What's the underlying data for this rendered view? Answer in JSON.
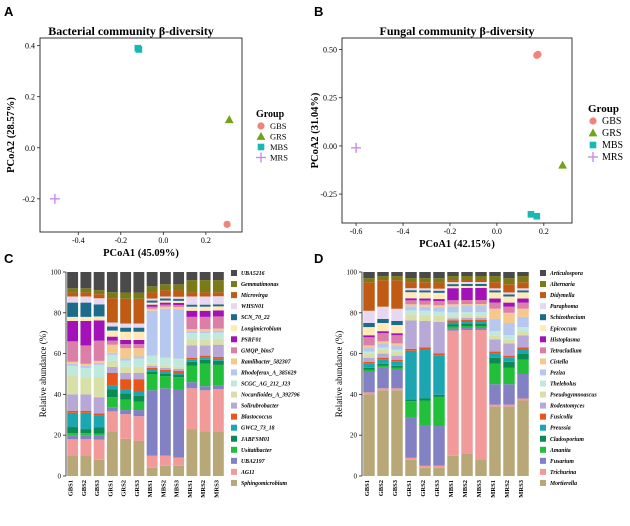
{
  "figure": {
    "panels": [
      {
        "letter": "A"
      },
      {
        "letter": "B"
      },
      {
        "letter": "C"
      },
      {
        "letter": "D"
      }
    ]
  },
  "chart_data": [
    {
      "panel": "A",
      "type": "scatter",
      "title": "Bacterial community β-diversity",
      "xlabel": "PCoA1 (45.09%)",
      "ylabel": "PCoA2 (28.57%)",
      "xlim": [
        -0.58,
        0.37
      ],
      "ylim": [
        -0.33,
        0.43
      ],
      "xticks": [
        -0.4,
        -0.2,
        0.0,
        0.2
      ],
      "yticks": [
        -0.2,
        0.0,
        0.2,
        0.4
      ],
      "grid": false,
      "legend_title": "Group",
      "legend_position": "right",
      "series": [
        {
          "name": "GBS",
          "marker": "circle",
          "color": "#f0847b",
          "points": [
            [
              0.3,
              -0.3
            ]
          ]
        },
        {
          "name": "GRS",
          "marker": "triangle",
          "color": "#72a31a",
          "points": [
            [
              0.31,
              0.11
            ]
          ]
        },
        {
          "name": "MBS",
          "marker": "square",
          "color": "#17b9b4",
          "points": [
            [
              -0.12,
              0.39
            ],
            [
              -0.115,
              0.385
            ]
          ]
        },
        {
          "name": "MRS",
          "marker": "cross",
          "color": "#c78bf0",
          "points": [
            [
              -0.51,
              -0.2
            ]
          ]
        }
      ]
    },
    {
      "panel": "B",
      "type": "scatter",
      "title": "Fungal community β-diversity",
      "xlabel": "PCoA1 (42.15%)",
      "ylabel": "PCoA2 (31.04%)",
      "xlim": [
        -0.66,
        0.32
      ],
      "ylim": [
        -0.4,
        0.56
      ],
      "xticks": [
        -0.6,
        -0.4,
        -0.2,
        0.0,
        0.2
      ],
      "yticks": [
        -0.25,
        0.0,
        0.25,
        0.5
      ],
      "grid": false,
      "legend_title": "Group",
      "legend_position": "right",
      "series": [
        {
          "name": "GBS",
          "marker": "circle",
          "color": "#f0847b",
          "points": [
            [
              0.17,
              0.47
            ],
            [
              0.175,
              0.475
            ]
          ]
        },
        {
          "name": "GRS",
          "marker": "triangle",
          "color": "#72a31a",
          "points": [
            [
              0.28,
              -0.1
            ]
          ]
        },
        {
          "name": "MBS",
          "marker": "square",
          "color": "#17b9b4",
          "points": [
            [
              0.145,
              -0.355
            ],
            [
              0.17,
              -0.365
            ]
          ]
        },
        {
          "name": "MRS",
          "marker": "cross",
          "color": "#c78bf0",
          "points": [
            [
              -0.6,
              -0.01
            ]
          ]
        }
      ]
    },
    {
      "panel": "C",
      "type": "bar",
      "stacked": true,
      "ylabel": "Relative abundance (%)",
      "ylim": [
        0,
        100
      ],
      "yticks": [
        0,
        20,
        40,
        60,
        80,
        100
      ],
      "legend_position": "right",
      "categories": [
        "GBS1",
        "GBS2",
        "GBS3",
        "GRS1",
        "GRS2",
        "GRS3",
        "MBS1",
        "MBS2",
        "MBS3",
        "MRS1",
        "MRS2",
        "MRS3"
      ],
      "series": [
        {
          "name": "Sphingomicrobium",
          "color": "#b8a878",
          "values": [
            10,
            10,
            8,
            22,
            18,
            17,
            4,
            5,
            5,
            23,
            22,
            22
          ]
        },
        {
          "name": "AG11",
          "color": "#f29a9a",
          "values": [
            8,
            8,
            10,
            10,
            12,
            12,
            6,
            5,
            4,
            20,
            20,
            21
          ]
        },
        {
          "name": "UBA2197",
          "color": "#8181c3",
          "values": [
            2,
            2,
            2,
            2,
            2,
            3,
            32,
            33,
            33,
            3,
            2,
            2
          ]
        },
        {
          "name": "Usitatibacter",
          "color": "#22c03a",
          "values": [
            1,
            1,
            1,
            5,
            5,
            4,
            8,
            6,
            6,
            8,
            11,
            10
          ]
        },
        {
          "name": "JABFSM01",
          "color": "#0b8a52",
          "values": [
            3,
            2,
            3,
            4,
            3,
            3,
            1,
            1,
            1,
            2,
            2,
            2
          ]
        },
        {
          "name": "GWC2_73_18",
          "color": "#1ca6b2",
          "values": [
            7,
            8,
            6,
            2,
            2,
            2,
            1,
            1,
            1,
            1,
            1,
            1
          ]
        },
        {
          "name": "Blastococcus",
          "color": "#e9541b",
          "values": [
            1,
            1,
            1,
            6,
            5,
            6,
            1,
            1,
            1,
            1,
            1,
            1
          ]
        },
        {
          "name": "Solirubrobacter",
          "color": "#b8a8d8",
          "values": [
            8,
            8,
            8,
            3,
            3,
            3,
            1,
            1,
            1,
            6,
            5,
            6
          ]
        },
        {
          "name": "Nocardioides_A_392796",
          "color": "#d8e0a8",
          "values": [
            9,
            8,
            10,
            3,
            3,
            3,
            1,
            1,
            1,
            3,
            3,
            3
          ]
        },
        {
          "name": "SCGC_AG_212_J23",
          "color": "#bfe9dc",
          "values": [
            5,
            5,
            6,
            3,
            3,
            4,
            4,
            4,
            4,
            3,
            3,
            3
          ]
        },
        {
          "name": "Rhodoferax_A_385629",
          "color": "#b6c7f0",
          "values": [
            1,
            1,
            1,
            1,
            1,
            1,
            22,
            24,
            24,
            1,
            1,
            1
          ]
        },
        {
          "name": "Ramlibacter_582307",
          "color": "#f5c98c",
          "values": [
            1,
            1,
            1,
            4,
            5,
            4,
            1,
            1,
            1,
            1,
            1,
            1
          ]
        },
        {
          "name": "GMQP_bins7",
          "color": "#dc7fa8",
          "values": [
            10,
            9,
            10,
            2,
            2,
            2,
            1,
            1,
            1,
            6,
            6,
            6
          ]
        },
        {
          "name": "PSRF01",
          "color": "#a312b8",
          "values": [
            10,
            12,
            10,
            2,
            2,
            2,
            1,
            1,
            1,
            3,
            3,
            3
          ]
        },
        {
          "name": "Longimicrobium",
          "color": "#ffe9b5",
          "values": [
            2,
            2,
            2,
            3,
            4,
            4,
            1,
            1,
            1,
            2,
            2,
            2
          ]
        },
        {
          "name": "SCN_70_22",
          "color": "#1b6b8a",
          "values": [
            7,
            7,
            6,
            2,
            2,
            2,
            1,
            1,
            1,
            1,
            1,
            1
          ]
        },
        {
          "name": "WHSN01",
          "color": "#e8d7f0",
          "values": [
            3,
            3,
            3,
            2,
            2,
            2,
            1,
            1,
            1,
            4,
            4,
            4
          ]
        },
        {
          "name": "Microvirga",
          "color": "#c05a15",
          "values": [
            2,
            2,
            2,
            12,
            12,
            12,
            3,
            3,
            3,
            2,
            2,
            2
          ]
        },
        {
          "name": "Gemmatimonas",
          "color": "#7a7a18",
          "values": [
            2,
            2,
            2,
            3,
            3,
            3,
            3,
            3,
            3,
            6,
            6,
            6
          ]
        },
        {
          "name": "UBA5216",
          "color": "#4a4a4a",
          "values": [
            8,
            8,
            9,
            10,
            10,
            10,
            7,
            6,
            6,
            4,
            4,
            4
          ]
        }
      ]
    },
    {
      "panel": "D",
      "type": "bar",
      "stacked": true,
      "ylabel": "Relative abundance (%)",
      "ylim": [
        0,
        100
      ],
      "yticks": [
        0,
        20,
        40,
        60,
        80,
        100
      ],
      "legend_position": "right",
      "categories": [
        "GBS1",
        "GBS2",
        "GBS3",
        "GRS1",
        "GRS2",
        "GRS3",
        "MBS1",
        "MBS2",
        "MBS3",
        "MRS1",
        "MRS2",
        "MRS3"
      ],
      "series": [
        {
          "name": "Mortierella",
          "color": "#b8a878",
          "values": [
            40,
            42,
            42,
            8,
            4,
            4,
            10,
            11,
            8,
            34,
            34,
            37
          ]
        },
        {
          "name": "Trichurina",
          "color": "#f29a9a",
          "values": [
            1,
            1,
            1,
            1,
            1,
            1,
            62,
            62,
            65,
            1,
            1,
            1
          ]
        },
        {
          "name": "Fusarium",
          "color": "#8181c3",
          "values": [
            10,
            10,
            9,
            20,
            20,
            19,
            1,
            1,
            1,
            10,
            10,
            12
          ]
        },
        {
          "name": "Amanita",
          "color": "#22c03a",
          "values": [
            1,
            1,
            1,
            8,
            12,
            14,
            1,
            1,
            1,
            10,
            8,
            7
          ]
        },
        {
          "name": "Cladosporium",
          "color": "#0b8a52",
          "values": [
            1,
            1,
            1,
            1,
            1,
            1,
            1,
            1,
            1,
            3,
            3,
            3
          ]
        },
        {
          "name": "Preussia",
          "color": "#1ca6b2",
          "values": [
            2,
            2,
            2,
            24,
            24,
            19,
            1,
            1,
            1,
            2,
            2,
            2
          ]
        },
        {
          "name": "Fusicolla",
          "color": "#e9541b",
          "values": [
            1,
            1,
            1,
            1,
            1,
            1,
            1,
            1,
            1,
            1,
            1,
            1
          ]
        },
        {
          "name": "Rodentomyces",
          "color": "#b8a8d8",
          "values": [
            2,
            2,
            2,
            14,
            13,
            15,
            1,
            1,
            1,
            6,
            6,
            6
          ]
        },
        {
          "name": "Pseudogymnoascus",
          "color": "#d8e0a8",
          "values": [
            2,
            2,
            2,
            3,
            3,
            3,
            1,
            1,
            1,
            2,
            2,
            2
          ]
        },
        {
          "name": "Thelebolus",
          "color": "#bfe9dc",
          "values": [
            1,
            1,
            1,
            2,
            2,
            2,
            2,
            2,
            2,
            2,
            2,
            2
          ]
        },
        {
          "name": "Peziza",
          "color": "#b6c7f0",
          "values": [
            2,
            2,
            2,
            2,
            2,
            2,
            3,
            3,
            3,
            6,
            6,
            5
          ]
        },
        {
          "name": "Cistella",
          "color": "#f5c98c",
          "values": [
            1,
            1,
            1,
            1,
            1,
            1,
            1,
            1,
            1,
            5,
            5,
            4
          ]
        },
        {
          "name": "Tetracladium",
          "color": "#dc7fa8",
          "values": [
            4,
            4,
            4,
            2,
            2,
            2,
            2,
            2,
            2,
            3,
            3,
            3
          ]
        },
        {
          "name": "Histoplasma",
          "color": "#a312b8",
          "values": [
            1,
            1,
            1,
            1,
            1,
            1,
            6,
            6,
            6,
            2,
            2,
            2
          ]
        },
        {
          "name": "Epicoccum",
          "color": "#ffe9b5",
          "values": [
            4,
            4,
            4,
            3,
            3,
            3,
            1,
            1,
            1,
            3,
            3,
            3
          ]
        },
        {
          "name": "Schizothecium",
          "color": "#1b6b8a",
          "values": [
            2,
            2,
            2,
            1,
            1,
            1,
            1,
            1,
            1,
            1,
            1,
            1
          ]
        },
        {
          "name": "Paraphoma",
          "color": "#e8d7f0",
          "values": [
            6,
            6,
            6,
            1,
            1,
            1,
            1,
            1,
            1,
            1,
            1,
            1
          ]
        },
        {
          "name": "Didymella",
          "color": "#c05a15",
          "values": [
            14,
            13,
            14,
            3,
            3,
            3,
            1,
            1,
            1,
            3,
            4,
            3
          ]
        },
        {
          "name": "Alternaria",
          "color": "#7a7a18",
          "values": [
            2,
            2,
            2,
            2,
            2,
            2,
            2,
            2,
            2,
            3,
            3,
            3
          ]
        },
        {
          "name": "Articulospora",
          "color": "#4a4a4a",
          "values": [
            3,
            2,
            2,
            3,
            3,
            3,
            2,
            2,
            2,
            2,
            3,
            2
          ]
        }
      ]
    }
  ]
}
